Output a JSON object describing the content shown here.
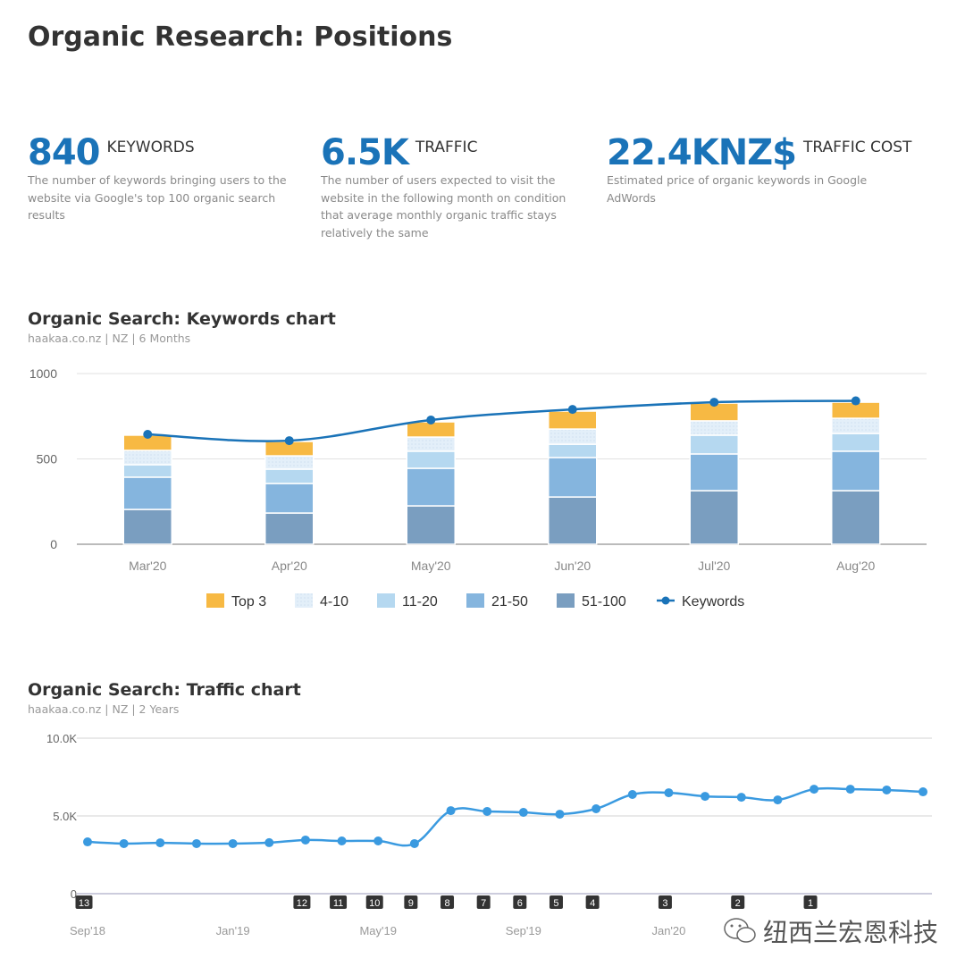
{
  "page_title": "Organic Research: Positions",
  "stats": [
    {
      "value": "840",
      "label": "KEYWORDS",
      "description": "The number of keywords bringing users to the website via Google's top 100 organic search results"
    },
    {
      "value": "6.5K",
      "label": "TRAFFIC",
      "description": "The number of users expected to visit the website in the following month on condition that average monthly organic traffic stays relatively the same"
    },
    {
      "value": "22.4KNZ$",
      "label": "TRAFFIC COST",
      "description": "Estimated price of organic keywords in Google AdWords"
    }
  ],
  "colors": {
    "accent": "#1a73b8",
    "top3": "#f7b943",
    "pos4_10": "#e3eff9",
    "pos11_20": "#b5d8f0",
    "pos21_50": "#85b5de",
    "pos51_100": "#7a9ec0",
    "keywords_line": "#1a73b8",
    "traffic_line": "#3a9ae0"
  },
  "chart_data": [
    {
      "type": "bar",
      "title": "Organic Search: Keywords chart",
      "subtitle": "haakaa.co.nz | NZ | 6 Months",
      "stacked": true,
      "categories": [
        "Mar'20",
        "Apr'20",
        "May'20",
        "Jun'20",
        "Jul'20",
        "Aug'20"
      ],
      "yticks": [
        "0",
        "500",
        "1000"
      ],
      "ylim": [
        0,
        1000
      ],
      "grid": true,
      "legend_placement": "bottom",
      "series": [
        {
          "name": "51-100",
          "values": [
            204,
            183,
            225,
            277,
            314,
            314
          ]
        },
        {
          "name": "21-50",
          "values": [
            189,
            173,
            220,
            231,
            215,
            231
          ]
        },
        {
          "name": "11-20",
          "values": [
            73,
            84,
            100,
            78,
            110,
            104
          ]
        },
        {
          "name": "4-10",
          "values": [
            84,
            78,
            83,
            89,
            84,
            89
          ]
        },
        {
          "name": "Top 3",
          "values": [
            89,
            84,
            89,
            105,
            104,
            94
          ]
        }
      ],
      "line_series": {
        "name": "Keywords",
        "values": [
          644,
          607,
          728,
          790,
          832,
          840
        ]
      },
      "legend": [
        "Top 3",
        "4-10",
        "11-20",
        "21-50",
        "51-100",
        "Keywords"
      ]
    },
    {
      "type": "line",
      "title": "Organic Search: Traffic chart",
      "subtitle": "haakaa.co.nz | NZ | 2 Years",
      "x": [
        "Sep'18",
        "Oct'18",
        "Nov'18",
        "Dec'18",
        "Jan'19",
        "Feb'19",
        "Mar'19",
        "Apr'19",
        "May'19",
        "Jun'19",
        "Jul'19",
        "Aug'19",
        "Sep'19",
        "Oct'19",
        "Nov'19",
        "Dec'19",
        "Jan'20",
        "Feb'20",
        "Mar'20",
        "Apr'20",
        "May'20",
        "Jun'20",
        "Jul'20",
        "Aug'20"
      ],
      "values": [
        3330,
        3220,
        3270,
        3220,
        3220,
        3280,
        3450,
        3390,
        3390,
        3220,
        5340,
        5290,
        5230,
        5110,
        5460,
        6380,
        6490,
        6260,
        6200,
        6030,
        6720,
        6720,
        6670,
        6550
      ],
      "xticks": [
        "Sep'18",
        "Jan'19",
        "May'19",
        "Sep'19",
        "Jan'20"
      ],
      "yticks": [
        "0",
        "5.0K",
        "10.0K"
      ],
      "ylim": [
        0,
        10000
      ],
      "grid": true,
      "markers": [
        {
          "label": "13",
          "x": "Sep'18"
        },
        {
          "label": "12",
          "x": "Mar'19"
        },
        {
          "label": "11",
          "x": "Apr'19"
        },
        {
          "label": "10",
          "x": "May'19"
        },
        {
          "label": "9",
          "x": "Jun'19"
        },
        {
          "label": "8",
          "x": "Jul'19"
        },
        {
          "label": "7",
          "x": "Aug'19"
        },
        {
          "label": "6",
          "x": "Sep'19"
        },
        {
          "label": "5",
          "x": "Oct'19"
        },
        {
          "label": "4",
          "x": "Nov'19"
        },
        {
          "label": "3",
          "x": "Jan'20"
        },
        {
          "label": "2",
          "x": "Mar'20"
        },
        {
          "label": "1",
          "x": "May'20"
        }
      ]
    }
  ],
  "watermark": {
    "text": "纽西兰宏恩科技",
    "icon": "wechat-icon"
  }
}
